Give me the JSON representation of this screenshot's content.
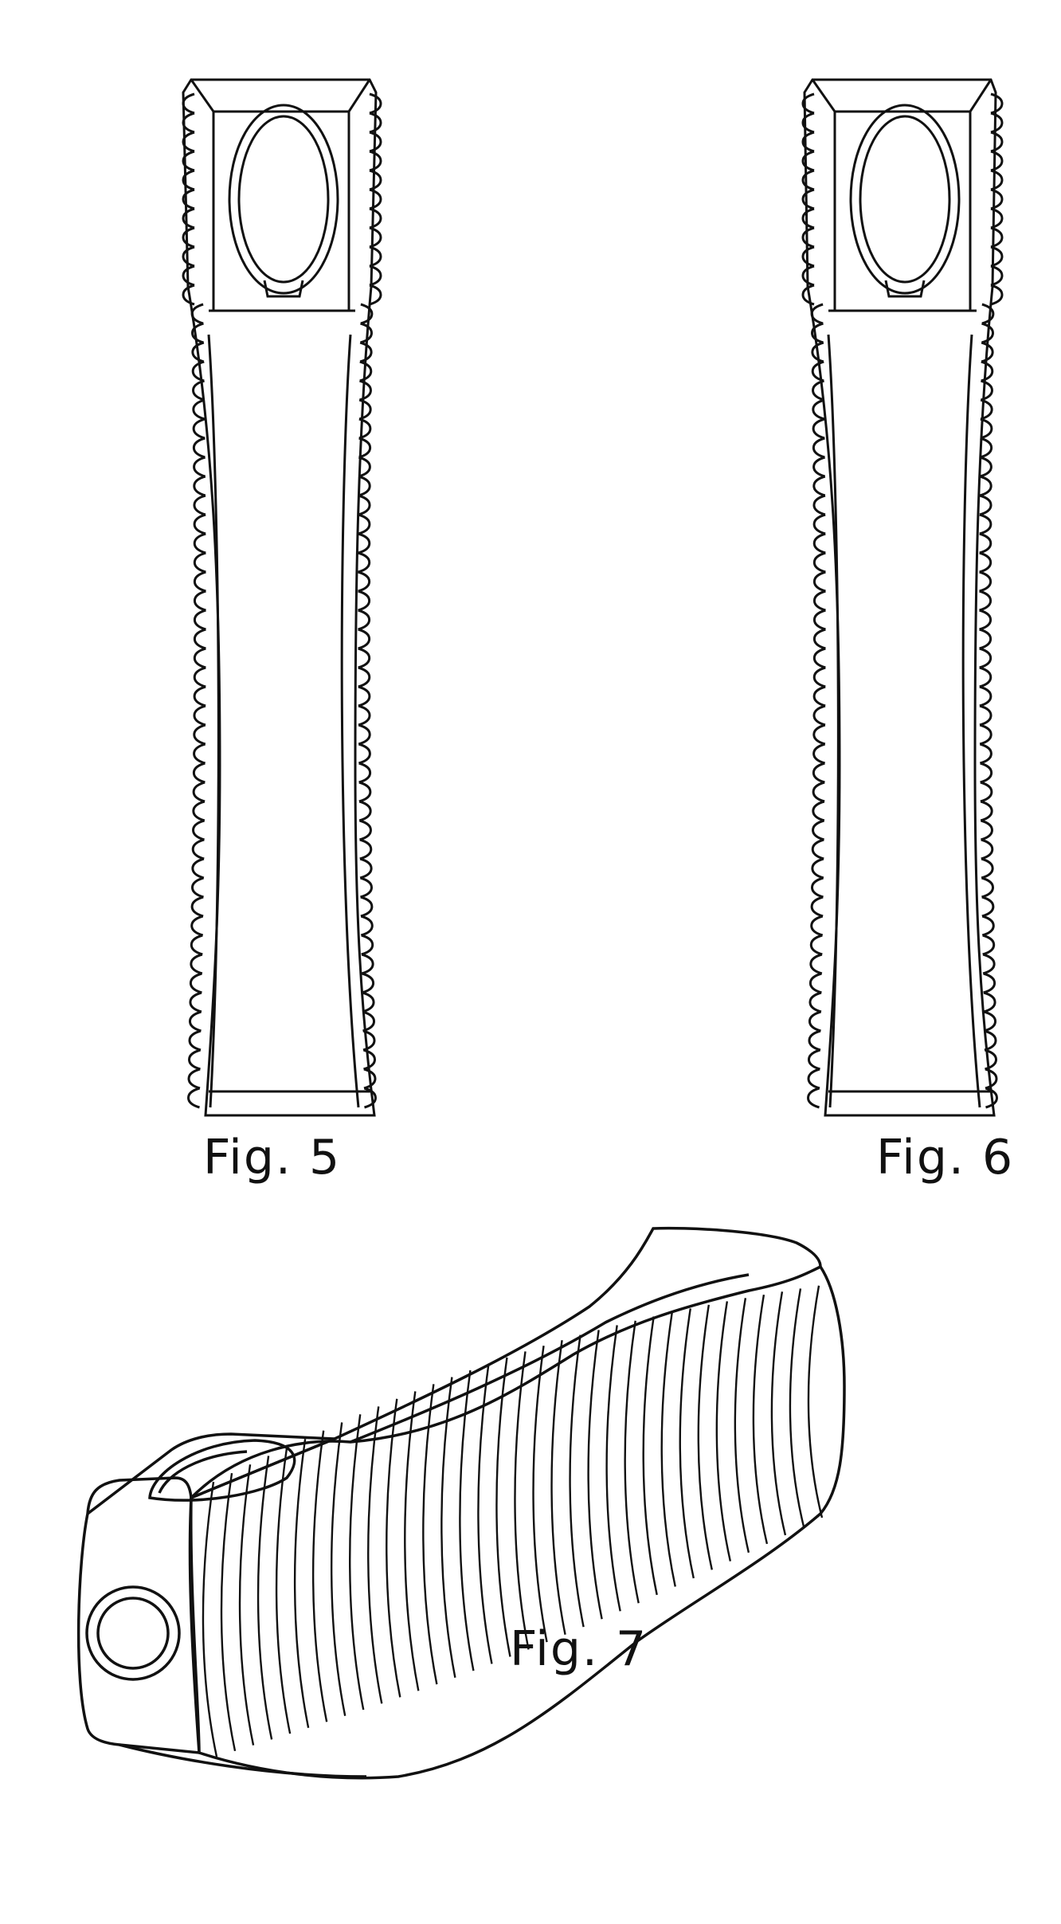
{
  "figures": [
    {
      "id": "fig5",
      "label": "Fig. 5",
      "view": "side"
    },
    {
      "id": "fig6",
      "label": "Fig. 6",
      "view": "side"
    },
    {
      "id": "fig7",
      "label": "Fig. 7",
      "view": "perspective"
    }
  ],
  "colors": {
    "line": "#111111",
    "background": "#ffffff"
  }
}
